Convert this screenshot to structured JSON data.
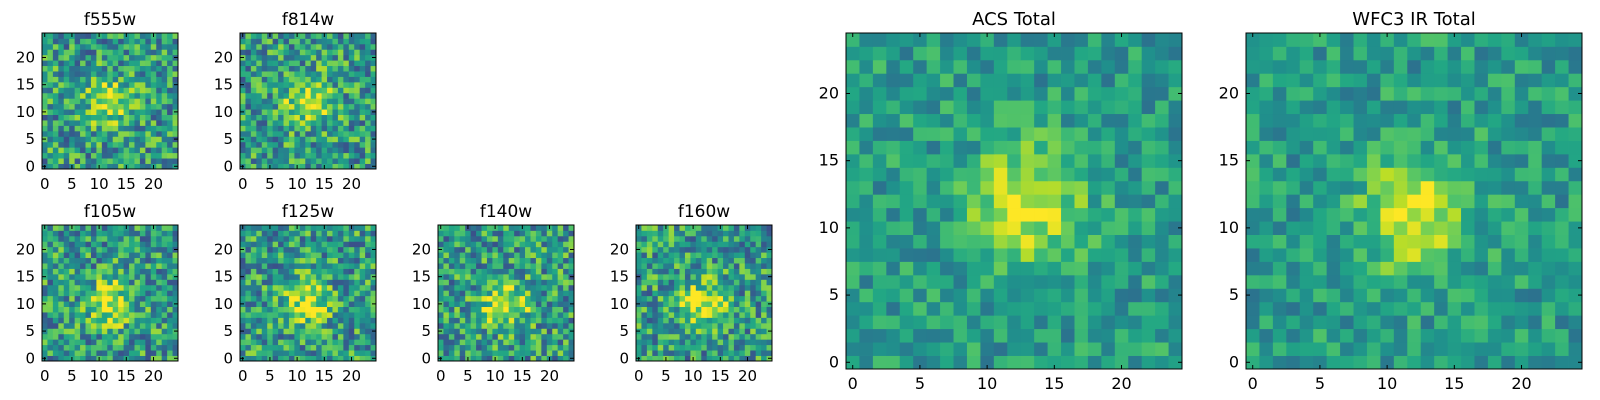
{
  "chart_data": [
    {
      "type": "heatmap",
      "title": "f555w",
      "xlim": [
        -0.5,
        24.5
      ],
      "ylim": [
        -0.5,
        24.5
      ],
      "xticks": [
        0,
        5,
        10,
        15,
        20
      ],
      "yticks": [
        0,
        5,
        10,
        15,
        20
      ],
      "colormap": "viridis",
      "peak": [
        12,
        12
      ],
      "grid": false
    },
    {
      "type": "heatmap",
      "title": "f814w",
      "xlim": [
        -0.5,
        24.5
      ],
      "ylim": [
        -0.5,
        24.5
      ],
      "xticks": [
        0,
        5,
        10,
        15,
        20
      ],
      "yticks": [
        0,
        5,
        10,
        15,
        20
      ],
      "colormap": "viridis",
      "peak": [
        12,
        12
      ],
      "grid": false
    },
    {
      "type": "heatmap",
      "title": "f105w",
      "xlim": [
        -0.5,
        24.5
      ],
      "ylim": [
        -0.5,
        24.5
      ],
      "xticks": [
        0,
        5,
        10,
        15,
        20
      ],
      "yticks": [
        0,
        5,
        10,
        15,
        20
      ],
      "colormap": "viridis",
      "peak": [
        12,
        10
      ],
      "grid": false
    },
    {
      "type": "heatmap",
      "title": "f125w",
      "xlim": [
        -0.5,
        24.5
      ],
      "ylim": [
        -0.5,
        24.5
      ],
      "xticks": [
        0,
        5,
        10,
        15,
        20
      ],
      "yticks": [
        0,
        5,
        10,
        15,
        20
      ],
      "colormap": "viridis",
      "peak": [
        12,
        10
      ],
      "grid": false
    },
    {
      "type": "heatmap",
      "title": "f140w",
      "xlim": [
        -0.5,
        24.5
      ],
      "ylim": [
        -0.5,
        24.5
      ],
      "xticks": [
        0,
        5,
        10,
        15,
        20
      ],
      "yticks": [
        0,
        5,
        10,
        15,
        20
      ],
      "colormap": "viridis",
      "peak": [
        12,
        10
      ],
      "grid": false
    },
    {
      "type": "heatmap",
      "title": "f160w",
      "xlim": [
        -0.5,
        24.5
      ],
      "ylim": [
        -0.5,
        24.5
      ],
      "xticks": [
        0,
        5,
        10,
        15,
        20
      ],
      "yticks": [
        0,
        5,
        10,
        15,
        20
      ],
      "colormap": "viridis",
      "peak": [
        12,
        10
      ],
      "grid": false
    },
    {
      "type": "heatmap",
      "title": "ACS Total",
      "xlim": [
        -0.5,
        24.5
      ],
      "ylim": [
        -0.5,
        24.5
      ],
      "xticks": [
        0,
        5,
        10,
        15,
        20
      ],
      "yticks": [
        0,
        5,
        10,
        15,
        20
      ],
      "colormap": "viridis",
      "peak": [
        13,
        12
      ],
      "grid": false
    },
    {
      "type": "heatmap",
      "title": "WFC3 IR Total",
      "xlim": [
        -0.5,
        24.5
      ],
      "ylim": [
        -0.5,
        24.5
      ],
      "xticks": [
        0,
        5,
        10,
        15,
        20
      ],
      "yticks": [
        0,
        5,
        10,
        15,
        20
      ],
      "colormap": "viridis",
      "peak": [
        12,
        11
      ],
      "grid": false
    }
  ]
}
